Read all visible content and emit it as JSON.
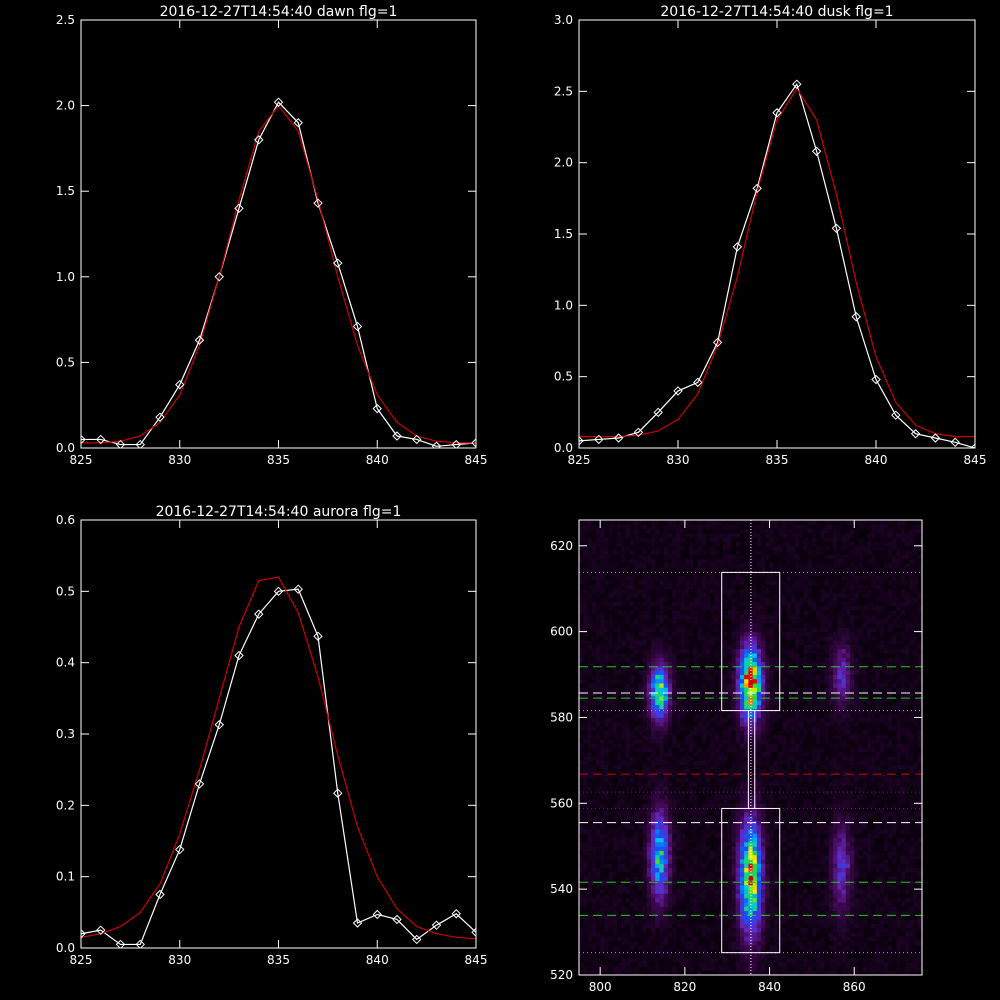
{
  "colors": {
    "background": "#000000",
    "axis": "#ffffff",
    "observed": "#ffffff",
    "fit": "#cc0000",
    "center_line": "#ffffff",
    "green_dash": "#22cc22",
    "red_dash": "#cc0000",
    "magenta_dot": "#ff66ff"
  },
  "chart_data": [
    {
      "id": "dawn",
      "type": "line",
      "title": "2016-12-27T14:54:40 dawn flg=1",
      "xlim": [
        825,
        845
      ],
      "ylim": [
        0,
        2.5
      ],
      "xticks": [
        "825",
        "830",
        "835",
        "840",
        "845"
      ],
      "yticks": [
        "0.0",
        "0.5",
        "1.0",
        "1.5",
        "2.0",
        "2.5"
      ],
      "series": [
        {
          "role": "observed",
          "marker": "diamond",
          "x": [
            825,
            826,
            827,
            828,
            829,
            830,
            831,
            832,
            833,
            834,
            835,
            836,
            837,
            838,
            839,
            840,
            841,
            842,
            843,
            844,
            845
          ],
          "y": [
            0.05,
            0.05,
            0.02,
            0.02,
            0.18,
            0.37,
            0.63,
            1.0,
            1.4,
            1.8,
            2.02,
            1.9,
            1.43,
            1.08,
            0.71,
            0.23,
            0.07,
            0.05,
            0.01,
            0.02,
            0.03
          ]
        },
        {
          "role": "fit",
          "x": [
            825,
            826,
            827,
            828,
            829,
            830,
            831,
            832,
            833,
            834,
            835,
            836,
            837,
            838,
            839,
            840,
            841,
            842,
            843,
            844,
            845
          ],
          "y": [
            0.03,
            0.03,
            0.04,
            0.07,
            0.15,
            0.31,
            0.6,
            1.0,
            1.45,
            1.85,
            2.0,
            1.85,
            1.45,
            1.0,
            0.6,
            0.31,
            0.15,
            0.07,
            0.04,
            0.03,
            0.03
          ]
        }
      ]
    },
    {
      "id": "dusk",
      "type": "line",
      "title": "2016-12-27T14:54:40 dusk flg=1",
      "xlim": [
        825,
        845
      ],
      "ylim": [
        0,
        3.0
      ],
      "xticks": [
        "825",
        "830",
        "835",
        "840",
        "845"
      ],
      "yticks": [
        "0.0",
        "0.5",
        "1.0",
        "1.5",
        "2.0",
        "2.5",
        "3.0"
      ],
      "series": [
        {
          "role": "observed",
          "marker": "diamond",
          "x": [
            825,
            826,
            827,
            828,
            829,
            830,
            831,
            832,
            833,
            834,
            835,
            836,
            837,
            838,
            839,
            840,
            841,
            842,
            843,
            844,
            845
          ],
          "y": [
            0.05,
            0.06,
            0.07,
            0.11,
            0.25,
            0.4,
            0.46,
            0.74,
            1.41,
            1.82,
            2.35,
            2.55,
            2.08,
            1.54,
            0.92,
            0.48,
            0.23,
            0.1,
            0.07,
            0.04,
            0.0
          ]
        },
        {
          "role": "fit",
          "x": [
            825,
            826,
            827,
            828,
            829,
            830,
            831,
            832,
            833,
            834,
            835,
            836,
            837,
            838,
            839,
            840,
            841,
            842,
            843,
            844,
            845
          ],
          "y": [
            0.08,
            0.08,
            0.08,
            0.09,
            0.12,
            0.2,
            0.38,
            0.72,
            1.2,
            1.8,
            2.3,
            2.52,
            2.3,
            1.78,
            1.16,
            0.64,
            0.32,
            0.16,
            0.1,
            0.08,
            0.08
          ]
        }
      ]
    },
    {
      "id": "aurora",
      "type": "line",
      "title": "2016-12-27T14:54:40 aurora flg=1",
      "xlim": [
        825,
        845
      ],
      "ylim": [
        0,
        0.6
      ],
      "xticks": [
        "825",
        "830",
        "835",
        "840",
        "845"
      ],
      "yticks": [
        "0.0",
        "0.1",
        "0.2",
        "0.3",
        "0.4",
        "0.5",
        "0.6"
      ],
      "series": [
        {
          "role": "observed",
          "marker": "diamond",
          "x": [
            825,
            826,
            827,
            828,
            829,
            830,
            831,
            832,
            833,
            834,
            835,
            836,
            837,
            838,
            839,
            840,
            841,
            842,
            843,
            844,
            845
          ],
          "y": [
            0.02,
            0.025,
            0.005,
            0.005,
            0.075,
            0.138,
            0.23,
            0.313,
            0.41,
            0.468,
            0.5,
            0.503,
            0.437,
            0.217,
            0.035,
            0.047,
            0.04,
            0.012,
            0.032,
            0.048,
            0.022
          ]
        },
        {
          "role": "fit",
          "x": [
            825,
            826,
            827,
            828,
            829,
            830,
            831,
            832,
            833,
            834,
            835,
            836,
            837,
            838,
            839,
            840,
            841,
            842,
            843,
            844,
            845
          ],
          "y": [
            0.015,
            0.02,
            0.03,
            0.05,
            0.09,
            0.16,
            0.25,
            0.35,
            0.45,
            0.515,
            0.52,
            0.47,
            0.38,
            0.27,
            0.17,
            0.1,
            0.055,
            0.03,
            0.02,
            0.015,
            0.013
          ]
        }
      ]
    },
    {
      "id": "image",
      "type": "heatmap",
      "title": "",
      "xlim": [
        795,
        876
      ],
      "ylim": [
        520,
        626
      ],
      "xticks": [
        "800",
        "820",
        "840",
        "860"
      ],
      "yticks": [
        "520",
        "540",
        "560",
        "580",
        "600",
        "620"
      ],
      "blobs": [
        {
          "x": 814,
          "y": 586,
          "sx": 1.6,
          "sy": 4.5,
          "amp": 0.75
        },
        {
          "x": 814,
          "y": 548,
          "sx": 1.6,
          "sy": 7,
          "amp": 0.62
        },
        {
          "x": 835.5,
          "y": 588,
          "sx": 1.8,
          "sy": 6,
          "amp": 1.0
        },
        {
          "x": 835.5,
          "y": 543,
          "sx": 1.8,
          "sy": 9,
          "amp": 0.9
        },
        {
          "x": 857,
          "y": 590,
          "sx": 1.6,
          "sy": 5,
          "amp": 0.3
        },
        {
          "x": 857,
          "y": 545,
          "sx": 1.6,
          "sy": 7,
          "amp": 0.32
        }
      ],
      "boxes": [
        {
          "x0": 828.7,
          "x1": 842.4,
          "y0": 581.6,
          "y1": 613.8
        },
        {
          "x0": 828.7,
          "x1": 842.4,
          "y0": 525.2,
          "y1": 558.8
        },
        {
          "x0": 835.0,
          "x1": 836.5,
          "y0": 558.8,
          "y1": 581.6
        }
      ],
      "center_line_x": 835.6,
      "center_markers": [
        {
          "x": 835.6,
          "y": 588
        },
        {
          "x": 835.6,
          "y": 542.5
        }
      ],
      "hlines": [
        {
          "y": 613.8,
          "style": "dotted",
          "color": "magenta_dot"
        },
        {
          "y": 591.8,
          "style": "dashed",
          "color": "green_dash"
        },
        {
          "y": 585.7,
          "style": "dashed",
          "color": "center_line"
        },
        {
          "y": 584.5,
          "style": "dashed",
          "color": "green_dash"
        },
        {
          "y": 581.6,
          "style": "dotted",
          "color": "magenta_dot"
        },
        {
          "y": 566.8,
          "style": "dashed",
          "color": "red_dash"
        },
        {
          "y": 562.6,
          "style": "dotted",
          "color": "red_dash"
        },
        {
          "y": 558.8,
          "style": "dotted",
          "color": "red_dash"
        },
        {
          "y": 555.5,
          "style": "dashed",
          "color": "center_line"
        },
        {
          "y": 541.6,
          "style": "dashed",
          "color": "green_dash"
        },
        {
          "y": 533.9,
          "style": "dashed",
          "color": "green_dash"
        },
        {
          "y": 525.2,
          "style": "dotted",
          "color": "magenta_dot"
        }
      ]
    }
  ]
}
